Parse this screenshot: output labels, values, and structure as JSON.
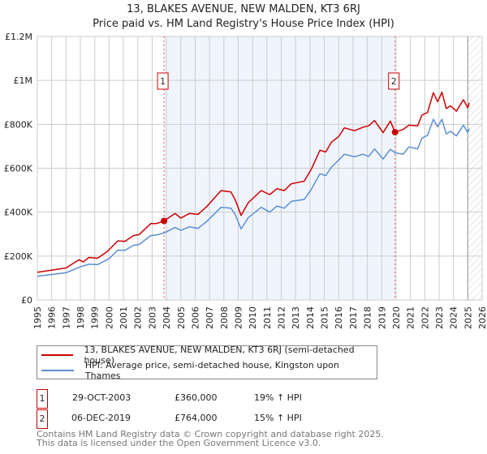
{
  "chart_data": {
    "type": "line",
    "title": "13, BLAKES AVENUE, NEW MALDEN, KT3 6RJ",
    "subtitle": "Price paid vs. HM Land Registry's House Price Index (HPI)",
    "xlim": [
      1995,
      2026
    ],
    "ylim": [
      0,
      1200000
    ],
    "yticks": [
      0,
      200000,
      400000,
      600000,
      800000,
      1000000,
      1200000
    ],
    "ytick_labels": [
      "£0",
      "£200K",
      "£400K",
      "£600K",
      "£800K",
      "£1M",
      "£1.2M"
    ],
    "xticks": [
      "1995",
      "1996",
      "1997",
      "1998",
      "1999",
      "2000",
      "2001",
      "2002",
      "2003",
      "2004",
      "2005",
      "2006",
      "2007",
      "2008",
      "2009",
      "2010",
      "2011",
      "2012",
      "2013",
      "2014",
      "2015",
      "2016",
      "2017",
      "2018",
      "2019",
      "2020",
      "2021",
      "2022",
      "2023",
      "2024",
      "2025",
      "2026"
    ],
    "grid": true,
    "shaded_range": [
      2003.83,
      2019.93
    ],
    "hatched_from": 2025.0,
    "series": [
      {
        "name": "13, BLAKES AVENUE, NEW MALDEN, KT3 6RJ (semi-detached house)",
        "color": "#cc0000",
        "x": [
          1995.0,
          1997.0,
          1997.9,
          1998.2,
          1998.6,
          1999.2,
          1999.9,
          2000.6,
          2001.1,
          2001.7,
          2002.1,
          2002.9,
          2003.3,
          2003.83,
          2004.6,
          2005.0,
          2005.6,
          2006.2,
          2006.8,
          2007.8,
          2008.5,
          2008.8,
          2009.2,
          2009.7,
          2010.6,
          2011.2,
          2011.7,
          2012.2,
          2012.7,
          2013.6,
          2014.1,
          2014.7,
          2015.1,
          2015.5,
          2016.0,
          2016.4,
          2017.1,
          2017.7,
          2018.1,
          2018.5,
          2019.1,
          2019.6,
          2019.93,
          2020.5,
          2020.9,
          2021.5,
          2021.8,
          2022.2,
          2022.6,
          2022.9,
          2023.2,
          2023.5,
          2023.8,
          2024.2,
          2024.7,
          2025.0,
          2025.1
        ],
        "values": [
          126000,
          146000,
          183000,
          173000,
          194000,
          190000,
          222000,
          269000,
          267000,
          293000,
          298000,
          348000,
          348000,
          360000,
          394000,
          373000,
          394000,
          390000,
          425000,
          498000,
          492000,
          455000,
          385000,
          443000,
          498000,
          480000,
          507000,
          498000,
          529000,
          541000,
          596000,
          682000,
          674000,
          719000,
          744000,
          784000,
          771000,
          787000,
          793000,
          817000,
          762000,
          815000,
          764000,
          777000,
          796000,
          793000,
          842000,
          854000,
          944000,
          903000,
          946000,
          872000,
          884000,
          860000,
          912000,
          875000,
          897000
        ]
      },
      {
        "name": "HPI: Average price, semi-detached house, Kingston upon Thames",
        "color": "#5b8fd4",
        "x": [
          1995.0,
          1997.0,
          1998.0,
          1998.6,
          1999.2,
          2000.0,
          2000.6,
          2001.1,
          2001.7,
          2002.1,
          2002.9,
          2003.3,
          2003.83,
          2004.6,
          2005.0,
          2005.6,
          2006.2,
          2006.8,
          2007.8,
          2008.5,
          2008.8,
          2009.2,
          2009.7,
          2010.6,
          2011.2,
          2011.7,
          2012.2,
          2012.7,
          2013.6,
          2014.1,
          2014.7,
          2015.1,
          2015.5,
          2016.0,
          2016.4,
          2017.1,
          2017.7,
          2018.1,
          2018.5,
          2019.1,
          2019.6,
          2019.93,
          2020.5,
          2020.9,
          2021.5,
          2021.8,
          2022.2,
          2022.6,
          2022.9,
          2023.2,
          2023.5,
          2023.8,
          2024.2,
          2024.7,
          2025.0,
          2025.1
        ],
        "values": [
          108000,
          124000,
          151000,
          163000,
          161000,
          188000,
          227000,
          226000,
          249000,
          253000,
          293000,
          296000,
          305000,
          330000,
          317000,
          333000,
          326000,
          357000,
          422000,
          418000,
          388000,
          323000,
          375000,
          422000,
          400000,
          428000,
          418000,
          449000,
          458000,
          504000,
          575000,
          566000,
          605000,
          637000,
          664000,
          652000,
          664000,
          654000,
          688000,
          642000,
          686000,
          670000,
          664000,
          697000,
          688000,
          737000,
          750000,
          823000,
          789000,
          823000,
          756000,
          768000,
          747000,
          796000,
          762000,
          780000
        ]
      }
    ],
    "annotations": [
      {
        "label": "1",
        "x": 2003.83,
        "y": 360000
      },
      {
        "label": "2",
        "x": 2019.93,
        "y": 764000
      }
    ]
  },
  "sales": [
    {
      "num": "1",
      "date": "29-OCT-2003",
      "price": "£360,000",
      "hpi": "19% ↑ HPI"
    },
    {
      "num": "2",
      "date": "06-DEC-2019",
      "price": "£764,000",
      "hpi": "15% ↑ HPI"
    }
  ],
  "footer": {
    "line1": "Contains HM Land Registry data © Crown copyright and database right 2025.",
    "line2": "This data is licensed under the Open Government Licence v3.0."
  }
}
